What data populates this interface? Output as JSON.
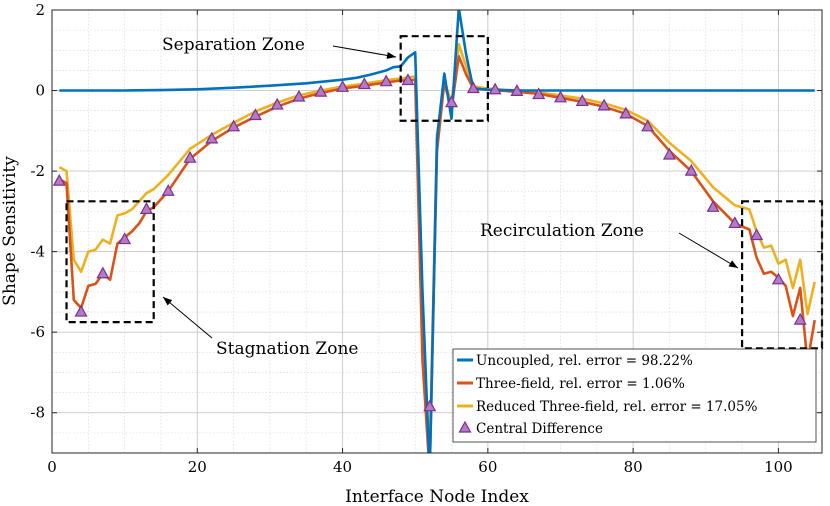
{
  "chart_data": {
    "type": "line",
    "title": "",
    "xlabel": "Interface Node Index",
    "ylabel": "Shape Sensitivity",
    "xlim": [
      0,
      106
    ],
    "ylim": [
      -9,
      2
    ],
    "xticks": [
      0,
      20,
      40,
      60,
      80,
      100
    ],
    "yticks": [
      -8,
      -6,
      -4,
      -2,
      0,
      2
    ],
    "xtick_labels": [
      "0",
      "20",
      "40",
      "60",
      "80",
      "100"
    ],
    "ytick_labels": [
      "-8",
      "-6",
      "-4",
      "-2",
      "0",
      "2"
    ],
    "grid": true,
    "legend_position": "bottom-right",
    "series": [
      {
        "name": "Uncoupled, rel. error = 98.22%",
        "color": "#0072BD",
        "style": "line",
        "x": [
          1,
          5,
          10,
          15,
          20,
          25,
          30,
          35,
          40,
          42,
          44,
          46,
          47,
          48,
          49,
          50,
          51,
          52,
          53,
          54,
          55,
          56,
          57,
          58,
          60,
          65,
          70,
          80,
          90,
          100,
          105
        ],
        "y": [
          0,
          0,
          0,
          0.01,
          0.03,
          0.07,
          0.12,
          0.18,
          0.27,
          0.32,
          0.4,
          0.5,
          0.58,
          0.6,
          0.82,
          0.95,
          -5.0,
          -9.5,
          -1.2,
          0.42,
          -0.7,
          2.05,
          0.9,
          0.05,
          0.02,
          0,
          0,
          0,
          0,
          0,
          0
        ]
      },
      {
        "name": "Three-field, rel. error = 1.06%",
        "color": "#D95319",
        "style": "line",
        "x": [
          1,
          2,
          3,
          4,
          5,
          6,
          7,
          8,
          9,
          10,
          11,
          12,
          13,
          14,
          16,
          19,
          22,
          25,
          28,
          31,
          34,
          37,
          40,
          43,
          46,
          48,
          49,
          50,
          51,
          52,
          53,
          54,
          55,
          56,
          57,
          58,
          60,
          64,
          67,
          70,
          73,
          76,
          79,
          82,
          85,
          88,
          91,
          94,
          96,
          97,
          98,
          99,
          100,
          101,
          102,
          103,
          104,
          105
        ],
        "y": [
          -2.2,
          -2.3,
          -5.2,
          -5.4,
          -4.85,
          -4.8,
          -4.55,
          -4.7,
          -3.8,
          -3.65,
          -3.5,
          -3.3,
          -3.0,
          -2.9,
          -2.5,
          -1.7,
          -1.25,
          -0.92,
          -0.65,
          -0.4,
          -0.2,
          -0.06,
          0.05,
          0.12,
          0.2,
          0.25,
          0.25,
          0.27,
          -6.7,
          -9.5,
          -1.5,
          0.2,
          -0.45,
          0.85,
          0.4,
          0.05,
          0.02,
          -0.03,
          -0.08,
          -0.18,
          -0.28,
          -0.4,
          -0.58,
          -0.88,
          -1.5,
          -2.0,
          -2.75,
          -3.3,
          -3.45,
          -4.15,
          -4.55,
          -4.5,
          -4.65,
          -4.85,
          -5.6,
          -4.9,
          -6.75,
          -5.7
        ]
      },
      {
        "name": "Reduced Three-field, rel. error = 17.05%",
        "color": "#EDB120",
        "style": "line",
        "x": [
          1,
          2,
          3,
          4,
          5,
          6,
          7,
          8,
          9,
          10,
          11,
          12,
          13,
          14,
          16,
          19,
          22,
          25,
          28,
          31,
          34,
          37,
          40,
          43,
          46,
          48,
          49,
          50,
          51,
          52,
          53,
          54,
          55,
          56,
          57,
          58,
          60,
          64,
          67,
          70,
          73,
          76,
          79,
          82,
          85,
          88,
          91,
          94,
          96,
          97,
          98,
          99,
          100,
          101,
          102,
          103,
          104,
          105
        ],
        "y": [
          -1.9,
          -2.0,
          -4.2,
          -4.5,
          -4.0,
          -3.95,
          -3.7,
          -3.8,
          -3.1,
          -3.05,
          -2.95,
          -2.75,
          -2.55,
          -2.45,
          -2.1,
          -1.45,
          -1.1,
          -0.8,
          -0.52,
          -0.3,
          -0.12,
          0.0,
          0.1,
          0.17,
          0.26,
          0.3,
          0.32,
          0.35,
          -6.0,
          -9.0,
          -1.1,
          0.25,
          -0.3,
          1.15,
          0.6,
          0.1,
          0.05,
          -0.01,
          -0.05,
          -0.12,
          -0.2,
          -0.32,
          -0.48,
          -0.75,
          -1.3,
          -1.75,
          -2.4,
          -2.85,
          -2.95,
          -3.5,
          -3.9,
          -3.85,
          -4.3,
          -4.2,
          -4.9,
          -4.2,
          -5.55,
          -4.75
        ]
      },
      {
        "name": "Central Difference",
        "color": "#7E2F8E",
        "style": "markers",
        "marker": "triangle",
        "x": [
          1,
          4,
          7,
          10,
          13,
          16,
          19,
          22,
          25,
          28,
          31,
          34,
          37,
          40,
          43,
          46,
          49,
          52,
          55,
          58,
          61,
          64,
          67,
          70,
          73,
          76,
          79,
          82,
          85,
          88,
          91,
          94,
          97,
          100,
          103
        ],
        "y": [
          -2.25,
          -5.5,
          -4.55,
          -3.7,
          -2.95,
          -2.5,
          -1.68,
          -1.2,
          -0.9,
          -0.62,
          -0.36,
          -0.16,
          -0.04,
          0.08,
          0.15,
          0.22,
          0.25,
          -7.85,
          -0.3,
          0.05,
          0.02,
          -0.02,
          -0.1,
          -0.18,
          -0.27,
          -0.38,
          -0.58,
          -0.9,
          -1.6,
          -2.0,
          -2.9,
          -3.3,
          -3.6,
          -4.7,
          -5.7
        ]
      }
    ],
    "annotations": [
      {
        "text": "Separation Zone",
        "box_x": [
          48,
          60
        ],
        "box_y": [
          -0.75,
          1.35
        ]
      },
      {
        "text": "Stagnation Zone",
        "box_x": [
          2,
          14
        ],
        "box_y": [
          -5.75,
          -2.75
        ]
      },
      {
        "text": "Recirculation Zone",
        "box_x": [
          95,
          106
        ],
        "box_y": [
          -6.4,
          -2.75
        ]
      }
    ]
  }
}
